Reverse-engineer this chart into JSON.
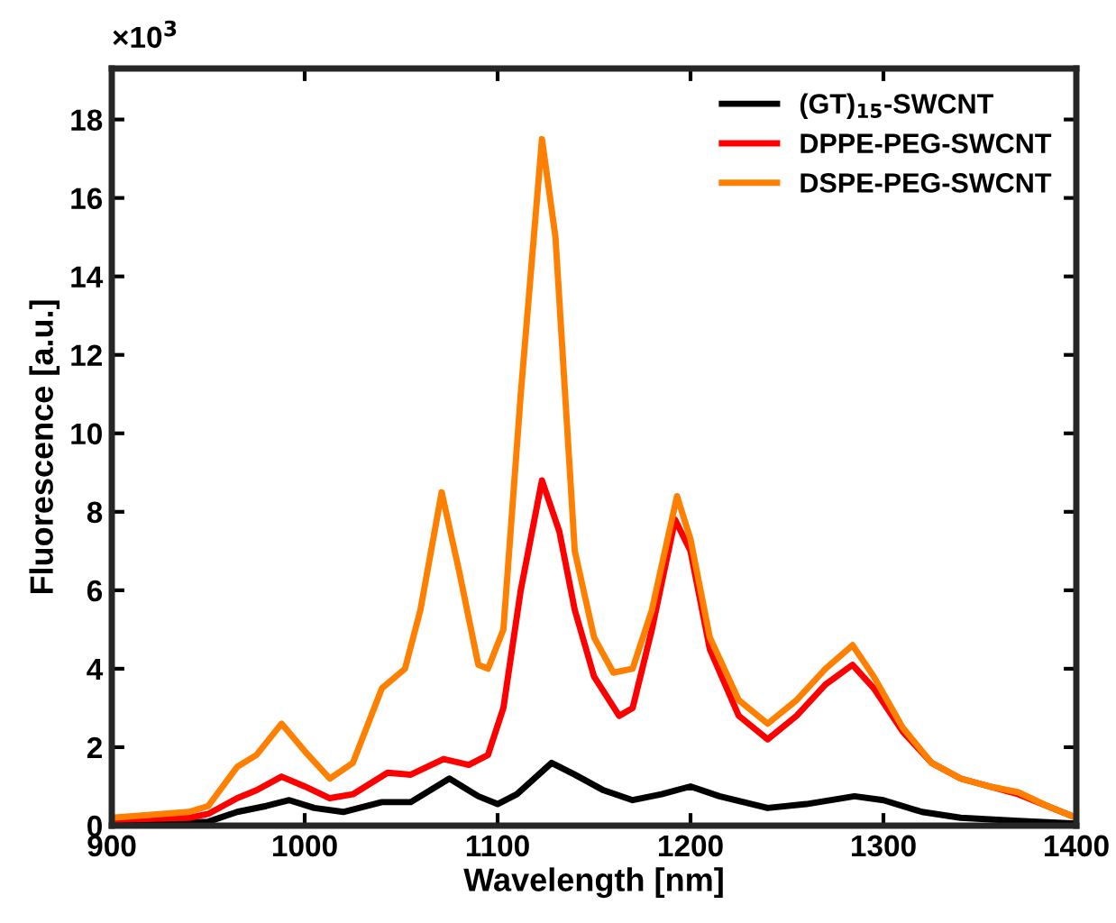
{
  "chart_data": {
    "type": "line",
    "xlabel": "Wavelength [nm]",
    "ylabel": "Fluorescence [a.u.]",
    "annotations": [
      "×10$^{3}$"
    ],
    "xlim": [
      900,
      1400
    ],
    "xticks": [
      900,
      1000,
      1100,
      1200,
      1300,
      1400
    ],
    "ylim": [
      0,
      19.3
    ],
    "yticks": [
      0,
      2,
      4,
      6,
      8,
      10,
      12,
      14,
      16,
      18
    ],
    "grid": false,
    "legend": "top right",
    "marker": "none",
    "line_style": "solid",
    "series": [
      {
        "name": "(GT)$_{15}$-SWCNT",
        "color": "#000000",
        "x": [
          900,
          950,
          965,
          980,
          992,
          1005,
          1020,
          1040,
          1055,
          1075,
          1090,
          1100,
          1110,
          1128,
          1140,
          1155,
          1170,
          1185,
          1200,
          1215,
          1240,
          1260,
          1285,
          1300,
          1320,
          1340,
          1370,
          1400
        ],
        "values": [
          0.05,
          0.1,
          0.35,
          0.5,
          0.65,
          0.45,
          0.35,
          0.6,
          0.6,
          1.2,
          0.75,
          0.55,
          0.8,
          1.6,
          1.3,
          0.9,
          0.65,
          0.8,
          1.0,
          0.75,
          0.45,
          0.55,
          0.75,
          0.65,
          0.35,
          0.2,
          0.12,
          0.05
        ]
      },
      {
        "name": "DPPE-PEG-SWCNT",
        "color": "#ff0000",
        "x": [
          900,
          940,
          950,
          965,
          975,
          988,
          1000,
          1013,
          1025,
          1043,
          1055,
          1072,
          1085,
          1095,
          1103,
          1112,
          1123,
          1132,
          1140,
          1150,
          1163,
          1170,
          1180,
          1192,
          1200,
          1210,
          1225,
          1240,
          1255,
          1270,
          1284,
          1295,
          1310,
          1325,
          1340,
          1355,
          1370,
          1385,
          1400
        ],
        "values": [
          0.15,
          0.2,
          0.3,
          0.7,
          0.9,
          1.25,
          1.0,
          0.7,
          0.8,
          1.35,
          1.3,
          1.7,
          1.55,
          1.8,
          3.0,
          6.0,
          8.8,
          7.5,
          5.5,
          3.8,
          2.8,
          3.0,
          5.0,
          7.8,
          7.0,
          4.5,
          2.8,
          2.2,
          2.8,
          3.6,
          4.1,
          3.5,
          2.4,
          1.6,
          1.2,
          1.0,
          0.8,
          0.5,
          0.2
        ]
      },
      {
        "name": "DSPE-PEG-SWCNT",
        "color": "#ff8000",
        "x": [
          900,
          940,
          950,
          965,
          975,
          988,
          1000,
          1013,
          1025,
          1040,
          1052,
          1060,
          1071,
          1080,
          1090,
          1095,
          1103,
          1112,
          1123,
          1130,
          1140,
          1150,
          1160,
          1170,
          1180,
          1193,
          1200,
          1210,
          1225,
          1240,
          1255,
          1270,
          1284,
          1295,
          1310,
          1325,
          1340,
          1355,
          1370,
          1385,
          1400
        ],
        "values": [
          0.2,
          0.35,
          0.5,
          1.5,
          1.8,
          2.6,
          1.9,
          1.2,
          1.6,
          3.5,
          4.0,
          5.5,
          8.5,
          6.5,
          4.1,
          4.0,
          5.0,
          11,
          17.5,
          15,
          7,
          4.8,
          3.9,
          4.0,
          5.5,
          8.4,
          7.3,
          4.8,
          3.2,
          2.6,
          3.2,
          4.0,
          4.6,
          3.8,
          2.5,
          1.6,
          1.2,
          1.0,
          0.85,
          0.5,
          0.2
        ]
      }
    ]
  }
}
